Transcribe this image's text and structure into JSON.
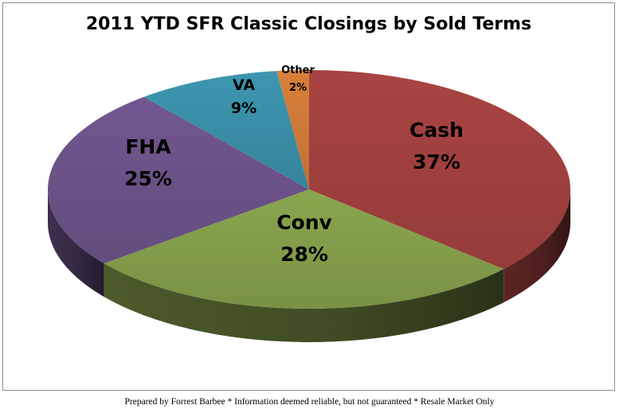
{
  "chart_data": {
    "type": "pie",
    "title": "2011 YTD SFR Classic Closings by Sold Terms",
    "slices": [
      {
        "label": "Cash",
        "value": 37,
        "pct_label": "37%",
        "color": "#a94442"
      },
      {
        "label": "Conv",
        "value": 28,
        "pct_label": "28%",
        "color": "#8aa64e"
      },
      {
        "label": "FHA",
        "value": 25,
        "pct_label": "25%",
        "color": "#71578f"
      },
      {
        "label": "VA",
        "value": 9,
        "pct_label": "9%",
        "color": "#3d96b0"
      },
      {
        "label": "Other",
        "value": 2,
        "pct_label": "2%",
        "color": "#d9803a"
      }
    ],
    "style": "3d",
    "legend": "none"
  },
  "footer": {
    "note": "Prepared by Forrest Barbee * Information deemed reliable, but not guaranteed * Resale Market Only"
  }
}
